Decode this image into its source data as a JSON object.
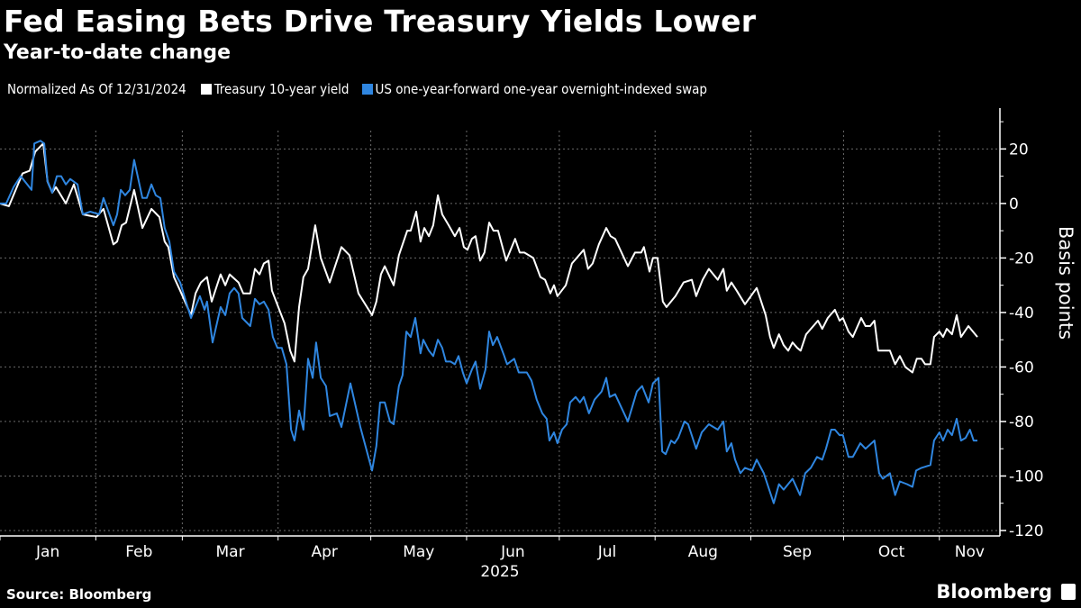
{
  "header": {
    "title": "Fed Easing Bets Drive Treasury Yields Lower",
    "subtitle": "Year-to-date change"
  },
  "legend": {
    "note": "Normalized As Of 12/31/2024"
  },
  "footer": {
    "source": "Source: Bloomberg",
    "brand": "Bloomberg"
  },
  "colors": {
    "background": "#000000",
    "treasury": "#ffffff",
    "swap": "#2f86e0",
    "grid": "#6a6a6a"
  },
  "chart_data": {
    "type": "line",
    "title": "Fed Easing Bets Drive Treasury Yields Lower",
    "subtitle": "Year-to-date change",
    "xlabel": "2025",
    "ylabel": "Basis points",
    "x_unit": "days since 12/31/2024",
    "xlim": [
      0,
      323.6
    ],
    "ylim": [
      -122,
      35
    ],
    "yticks": [
      20,
      0,
      -20,
      -40,
      -60,
      -80,
      -100,
      -120
    ],
    "month_labels": [
      "Jan",
      "Feb",
      "Mar",
      "Apr",
      "May",
      "Jun",
      "Jul",
      "Aug",
      "Sep",
      "Oct",
      "Nov"
    ],
    "month_starts": [
      0,
      31,
      59,
      90,
      120,
      151,
      181,
      212,
      243,
      273,
      304
    ],
    "grid": true,
    "legend_position": "top-left",
    "series": [
      {
        "name": "Treasury 10-year yield",
        "color": "#ffffff",
        "x": [
          0,
          2.9,
          7.3,
          9.6,
          11.4,
          14.0,
          15.4,
          16.9,
          18.1,
          21.3,
          23.9,
          26.8,
          31.2,
          33.5,
          36.7,
          37.9,
          39.4,
          40.8,
          43.4,
          46.1,
          49.0,
          51.6,
          53.3,
          54.5,
          56.3,
          58.3,
          61.8,
          63.3,
          65.0,
          67.0,
          68.5,
          71.4,
          72.9,
          74.3,
          77.2,
          78.7,
          81.0,
          82.5,
          84.0,
          85.4,
          86.9,
          88.0,
          92.1,
          93.9,
          95.3,
          96.8,
          98.2,
          99.7,
          102.0,
          103.8,
          106.7,
          110.5,
          113.1,
          116.0,
          120.4,
          121.8,
          123.3,
          124.5,
          127.4,
          129.1,
          131.8,
          132.9,
          134.7,
          136.1,
          137.3,
          138.8,
          140.2,
          141.7,
          143.1,
          145.2,
          147.2,
          148.7,
          150.1,
          151.3,
          152.7,
          153.9,
          155.4,
          156.8,
          158.3,
          159.7,
          161.2,
          163.8,
          166.7,
          168.2,
          169.7,
          172.6,
          174.9,
          176.4,
          178.1,
          179.3,
          180.4,
          183.1,
          185.1,
          188.9,
          190.3,
          191.8,
          193.8,
          196.2,
          197.6,
          199.1,
          203.2,
          205.5,
          207.5,
          208.4,
          210.2,
          211.3,
          212.8,
          214.5,
          215.7,
          218.6,
          221.2,
          223.9,
          225.3,
          227.4,
          229.4,
          232.3,
          234.1,
          235.2,
          236.7,
          238.4,
          241.1,
          244.9,
          247.8,
          249.2,
          250.4,
          252.1,
          253.6,
          255.1,
          256.5,
          258.0,
          259.1,
          260.9,
          264.7,
          266.1,
          267.9,
          270.2,
          271.7,
          272.8,
          274.6,
          276.0,
          278.7,
          280.1,
          281.6,
          283.0,
          284.2,
          288.0,
          289.7,
          291.2,
          293.0,
          295.3,
          296.7,
          298.2,
          299.4,
          301.1,
          302.3,
          304.0,
          305.2,
          306.4,
          308.1,
          309.6,
          311.0,
          313.4,
          316.3
        ],
        "y": [
          0,
          -1,
          11,
          12,
          19,
          22,
          8,
          4,
          6,
          0,
          7,
          -4,
          -5,
          -2,
          -15,
          -14,
          -8,
          -7,
          5,
          -9,
          -2,
          -5,
          -14,
          -16,
          -27,
          -32,
          -41,
          -33,
          -29,
          -27,
          -36,
          -26,
          -30,
          -26,
          -29,
          -33,
          -33,
          -24,
          -26,
          -22,
          -21,
          -32,
          -44,
          -54,
          -58,
          -38,
          -27,
          -24,
          -8,
          -20,
          -29,
          -16,
          -19,
          -33,
          -41,
          -36,
          -26,
          -23,
          -30,
          -19,
          -10,
          -10,
          -3,
          -14,
          -9,
          -12,
          -8,
          3,
          -4,
          -8,
          -12,
          -9,
          -16,
          -17,
          -13,
          -12,
          -21,
          -18,
          -7,
          -10,
          -10,
          -21,
          -13,
          -18,
          -18,
          -20,
          -27,
          -28,
          -33,
          -30,
          -34,
          -30,
          -22,
          -17,
          -24,
          -22,
          -15,
          -9,
          -12,
          -13,
          -23,
          -18,
          -18,
          -16,
          -25,
          -20,
          -20,
          -36,
          -38,
          -34,
          -29,
          -28,
          -34,
          -28,
          -24,
          -28,
          -24,
          -32,
          -29,
          -32,
          -37,
          -31,
          -41,
          -49,
          -53,
          -48,
          -52,
          -54,
          -51,
          -53,
          -54,
          -48,
          -43,
          -46,
          -42,
          -39,
          -43,
          -42,
          -47,
          -49,
          -42,
          -45,
          -45,
          -43,
          -54,
          -54,
          -59,
          -56,
          -60,
          -62,
          -57,
          -57,
          -59,
          -59,
          -49,
          -47,
          -49,
          -46,
          -48,
          -41,
          -49,
          -45,
          -49
        ]
      },
      {
        "name": "US one-year-forward one-year overnight-indexed swap",
        "color": "#2f86e0",
        "x": [
          0,
          2.0,
          4.4,
          6.7,
          10.2,
          11.1,
          13.1,
          14.3,
          15.4,
          16.9,
          18.4,
          19.8,
          21.3,
          22.7,
          25.1,
          26.8,
          29.2,
          32.1,
          33.5,
          36.7,
          37.9,
          39.1,
          40.5,
          42.0,
          43.4,
          46.1,
          47.5,
          49.0,
          50.4,
          51.9,
          53.3,
          54.8,
          56.3,
          58.3,
          61.8,
          64.7,
          66.2,
          67.0,
          68.8,
          71.4,
          72.9,
          74.3,
          75.8,
          77.2,
          78.4,
          81.0,
          82.5,
          84.0,
          85.4,
          86.9,
          88.3,
          89.8,
          91.2,
          92.7,
          94.2,
          95.3,
          96.8,
          98.2,
          99.7,
          101.2,
          102.3,
          103.8,
          105.5,
          106.7,
          109.0,
          110.5,
          113.4,
          116.6,
          120.4,
          121.8,
          123.0,
          124.5,
          126.2,
          127.4,
          129.1,
          130.3,
          131.5,
          132.9,
          134.4,
          136.1,
          137.0,
          138.8,
          140.2,
          141.7,
          143.1,
          144.3,
          145.8,
          147.2,
          148.4,
          149.8,
          151.0,
          152.7,
          153.9,
          155.4,
          157.1,
          158.3,
          159.5,
          160.9,
          163.2,
          164.1,
          166.4,
          167.9,
          170.5,
          172.0,
          173.7,
          175.5,
          176.9,
          177.8,
          179.3,
          180.4,
          181.9,
          183.4,
          184.5,
          186.3,
          187.7,
          188.9,
          190.6,
          192.4,
          194.7,
          196.2,
          197.3,
          199.1,
          203.2,
          206.1,
          207.8,
          209.9,
          211.3,
          213.1,
          214.3,
          215.4,
          217.2,
          218.3,
          219.5,
          221.5,
          222.7,
          225.3,
          227.1,
          229.4,
          232.3,
          234.1,
          235.2,
          236.7,
          237.9,
          239.6,
          241.1,
          243.4,
          244.9,
          247.2,
          250.4,
          252.1,
          253.6,
          256.5,
          258.9,
          260.6,
          262.4,
          264.4,
          266.1,
          267.3,
          269.0,
          270.2,
          271.7,
          272.8,
          274.6,
          276.0,
          278.4,
          280.1,
          283.0,
          284.5,
          285.7,
          288.0,
          289.7,
          291.2,
          293.5,
          295.3,
          296.5,
          298.2,
          301.1,
          302.3,
          304.0,
          305.2,
          306.7,
          308.1,
          309.6,
          311.0,
          312.5,
          313.9,
          315.1,
          316.3
        ],
        "y": [
          0,
          0,
          6,
          10,
          5,
          22,
          23,
          22,
          8,
          4,
          10,
          10,
          7,
          9,
          7,
          -4,
          -3,
          -4,
          2,
          -8,
          -4,
          5,
          3,
          5,
          16,
          2,
          2,
          7,
          3,
          2,
          -9,
          -14,
          -25,
          -29,
          -42,
          -34,
          -39,
          -36,
          -51,
          -38,
          -41,
          -33,
          -31,
          -33,
          -42,
          -45,
          -35,
          -37,
          -36,
          -39,
          -49,
          -53,
          -53,
          -59,
          -83,
          -87,
          -76,
          -83,
          -57,
          -64,
          -51,
          -64,
          -67,
          -78,
          -77,
          -82,
          -66,
          -82,
          -98,
          -89,
          -73,
          -73,
          -80,
          -81,
          -67,
          -63,
          -47,
          -49,
          -42,
          -55,
          -50,
          -54,
          -56,
          -50,
          -53,
          -58,
          -58,
          -59,
          -56,
          -62,
          -66,
          -61,
          -58,
          -68,
          -61,
          -47,
          -52,
          -49,
          -56,
          -59,
          -57,
          -62,
          -62,
          -65,
          -72,
          -77,
          -79,
          -87,
          -84,
          -88,
          -83,
          -81,
          -73,
          -71,
          -73,
          -71,
          -77,
          -72,
          -69,
          -64,
          -71,
          -70,
          -80,
          -69,
          -67,
          -73,
          -66,
          -64,
          -91,
          -92,
          -87,
          -88,
          -86,
          -80,
          -81,
          -90,
          -84,
          -81,
          -83,
          -80,
          -91,
          -88,
          -94,
          -99,
          -97,
          -98,
          -94,
          -99,
          -110,
          -103,
          -105,
          -101,
          -107,
          -99,
          -97,
          -93,
          -94,
          -90,
          -83,
          -83,
          -85,
          -85,
          -93,
          -93,
          -88,
          -90,
          -87,
          -99,
          -101,
          -99,
          -107,
          -102,
          -103,
          -104,
          -98,
          -97,
          -96,
          -87,
          -84,
          -87,
          -83,
          -85,
          -79,
          -87,
          -86,
          -83,
          -87,
          -87
        ]
      }
    ]
  }
}
